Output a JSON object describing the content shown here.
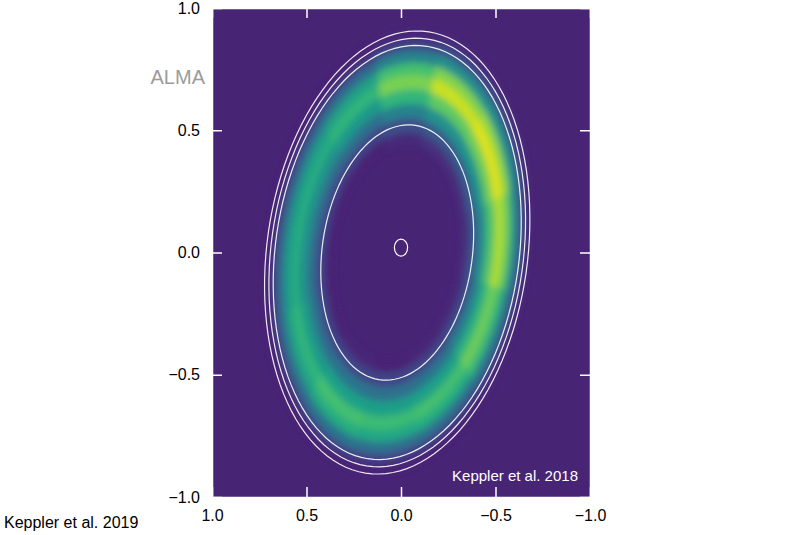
{
  "chart_data": {
    "type": "image",
    "xlim": [
      1,
      -1
    ],
    "ylim": [
      -1,
      1
    ],
    "xticks": [
      {
        "value": 1,
        "label": "1.0"
      },
      0.5,
      {
        "value": 0,
        "label": "0.0"
      },
      {
        "value": -0.5,
        "label": "−0.5"
      },
      {
        "value": -1,
        "label": "−1.0"
      }
    ],
    "yticks": [
      {
        "value": 1,
        "label": "1.0"
      },
      0.5,
      {
        "value": 0,
        "label": "0.0"
      },
      {
        "value": -0.5,
        "label": "−0.5"
      },
      {
        "value": -1,
        "label": "−1.0"
      }
    ],
    "annotations": [
      {
        "text": "ALMA"
      },
      {
        "text": "Keppler et al. 2018"
      },
      {
        "text": "Keppler et al. 2019"
      }
    ],
    "zlim": [
      0,
      1
    ],
    "background": 0.1,
    "disk": {
      "center": [
        0.02,
        0
      ],
      "position_angle": 165,
      "inclination": 42
    },
    "radii": [
      0.45,
      0.5,
      0.56,
      0.62,
      0.68,
      0.74,
      0.79,
      0.84,
      0.88,
      0.92
    ],
    "azimuths": [
      0,
      30,
      60,
      90,
      120,
      150,
      180,
      210,
      240,
      270,
      300,
      330,
      360
    ],
    "cells": [
      [
        0.1,
        0.11,
        0.12,
        0.13,
        0.14,
        0.14,
        0.12,
        0.1,
        0.09,
        0.09,
        0.1,
        0.11
      ],
      [
        0.2,
        0.21,
        0.23,
        0.26,
        0.29,
        0.28,
        0.24,
        0.2,
        0.19,
        0.19,
        0.2,
        0.21
      ],
      [
        0.37,
        0.39,
        0.43,
        0.48,
        0.52,
        0.51,
        0.44,
        0.36,
        0.34,
        0.34,
        0.36,
        0.39
      ],
      [
        0.56,
        0.57,
        0.64,
        0.72,
        0.78,
        0.75,
        0.66,
        0.54,
        0.51,
        0.51,
        0.54,
        0.57
      ],
      [
        0.68,
        0.7,
        0.78,
        0.88,
        0.95,
        0.92,
        0.8,
        0.66,
        0.62,
        0.62,
        0.66,
        0.7
      ],
      [
        0.6,
        0.62,
        0.69,
        0.77,
        0.84,
        0.81,
        0.7,
        0.58,
        0.55,
        0.55,
        0.58,
        0.62
      ],
      [
        0.37,
        0.39,
        0.43,
        0.48,
        0.52,
        0.51,
        0.44,
        0.36,
        0.34,
        0.34,
        0.36,
        0.39
      ],
      [
        0.19,
        0.2,
        0.22,
        0.25,
        0.27,
        0.26,
        0.22,
        0.18,
        0.17,
        0.17,
        0.18,
        0.2
      ],
      [
        0.1,
        0.1,
        0.11,
        0.12,
        0.13,
        0.13,
        0.11,
        0.09,
        0.09,
        0.09,
        0.09,
        0.1
      ]
    ],
    "contours": [
      0.53,
      0.86,
      0.89,
      0.92
    ],
    "point_source": {
      "x": 0,
      "y": 0.02,
      "radius": 0.035
    }
  }
}
